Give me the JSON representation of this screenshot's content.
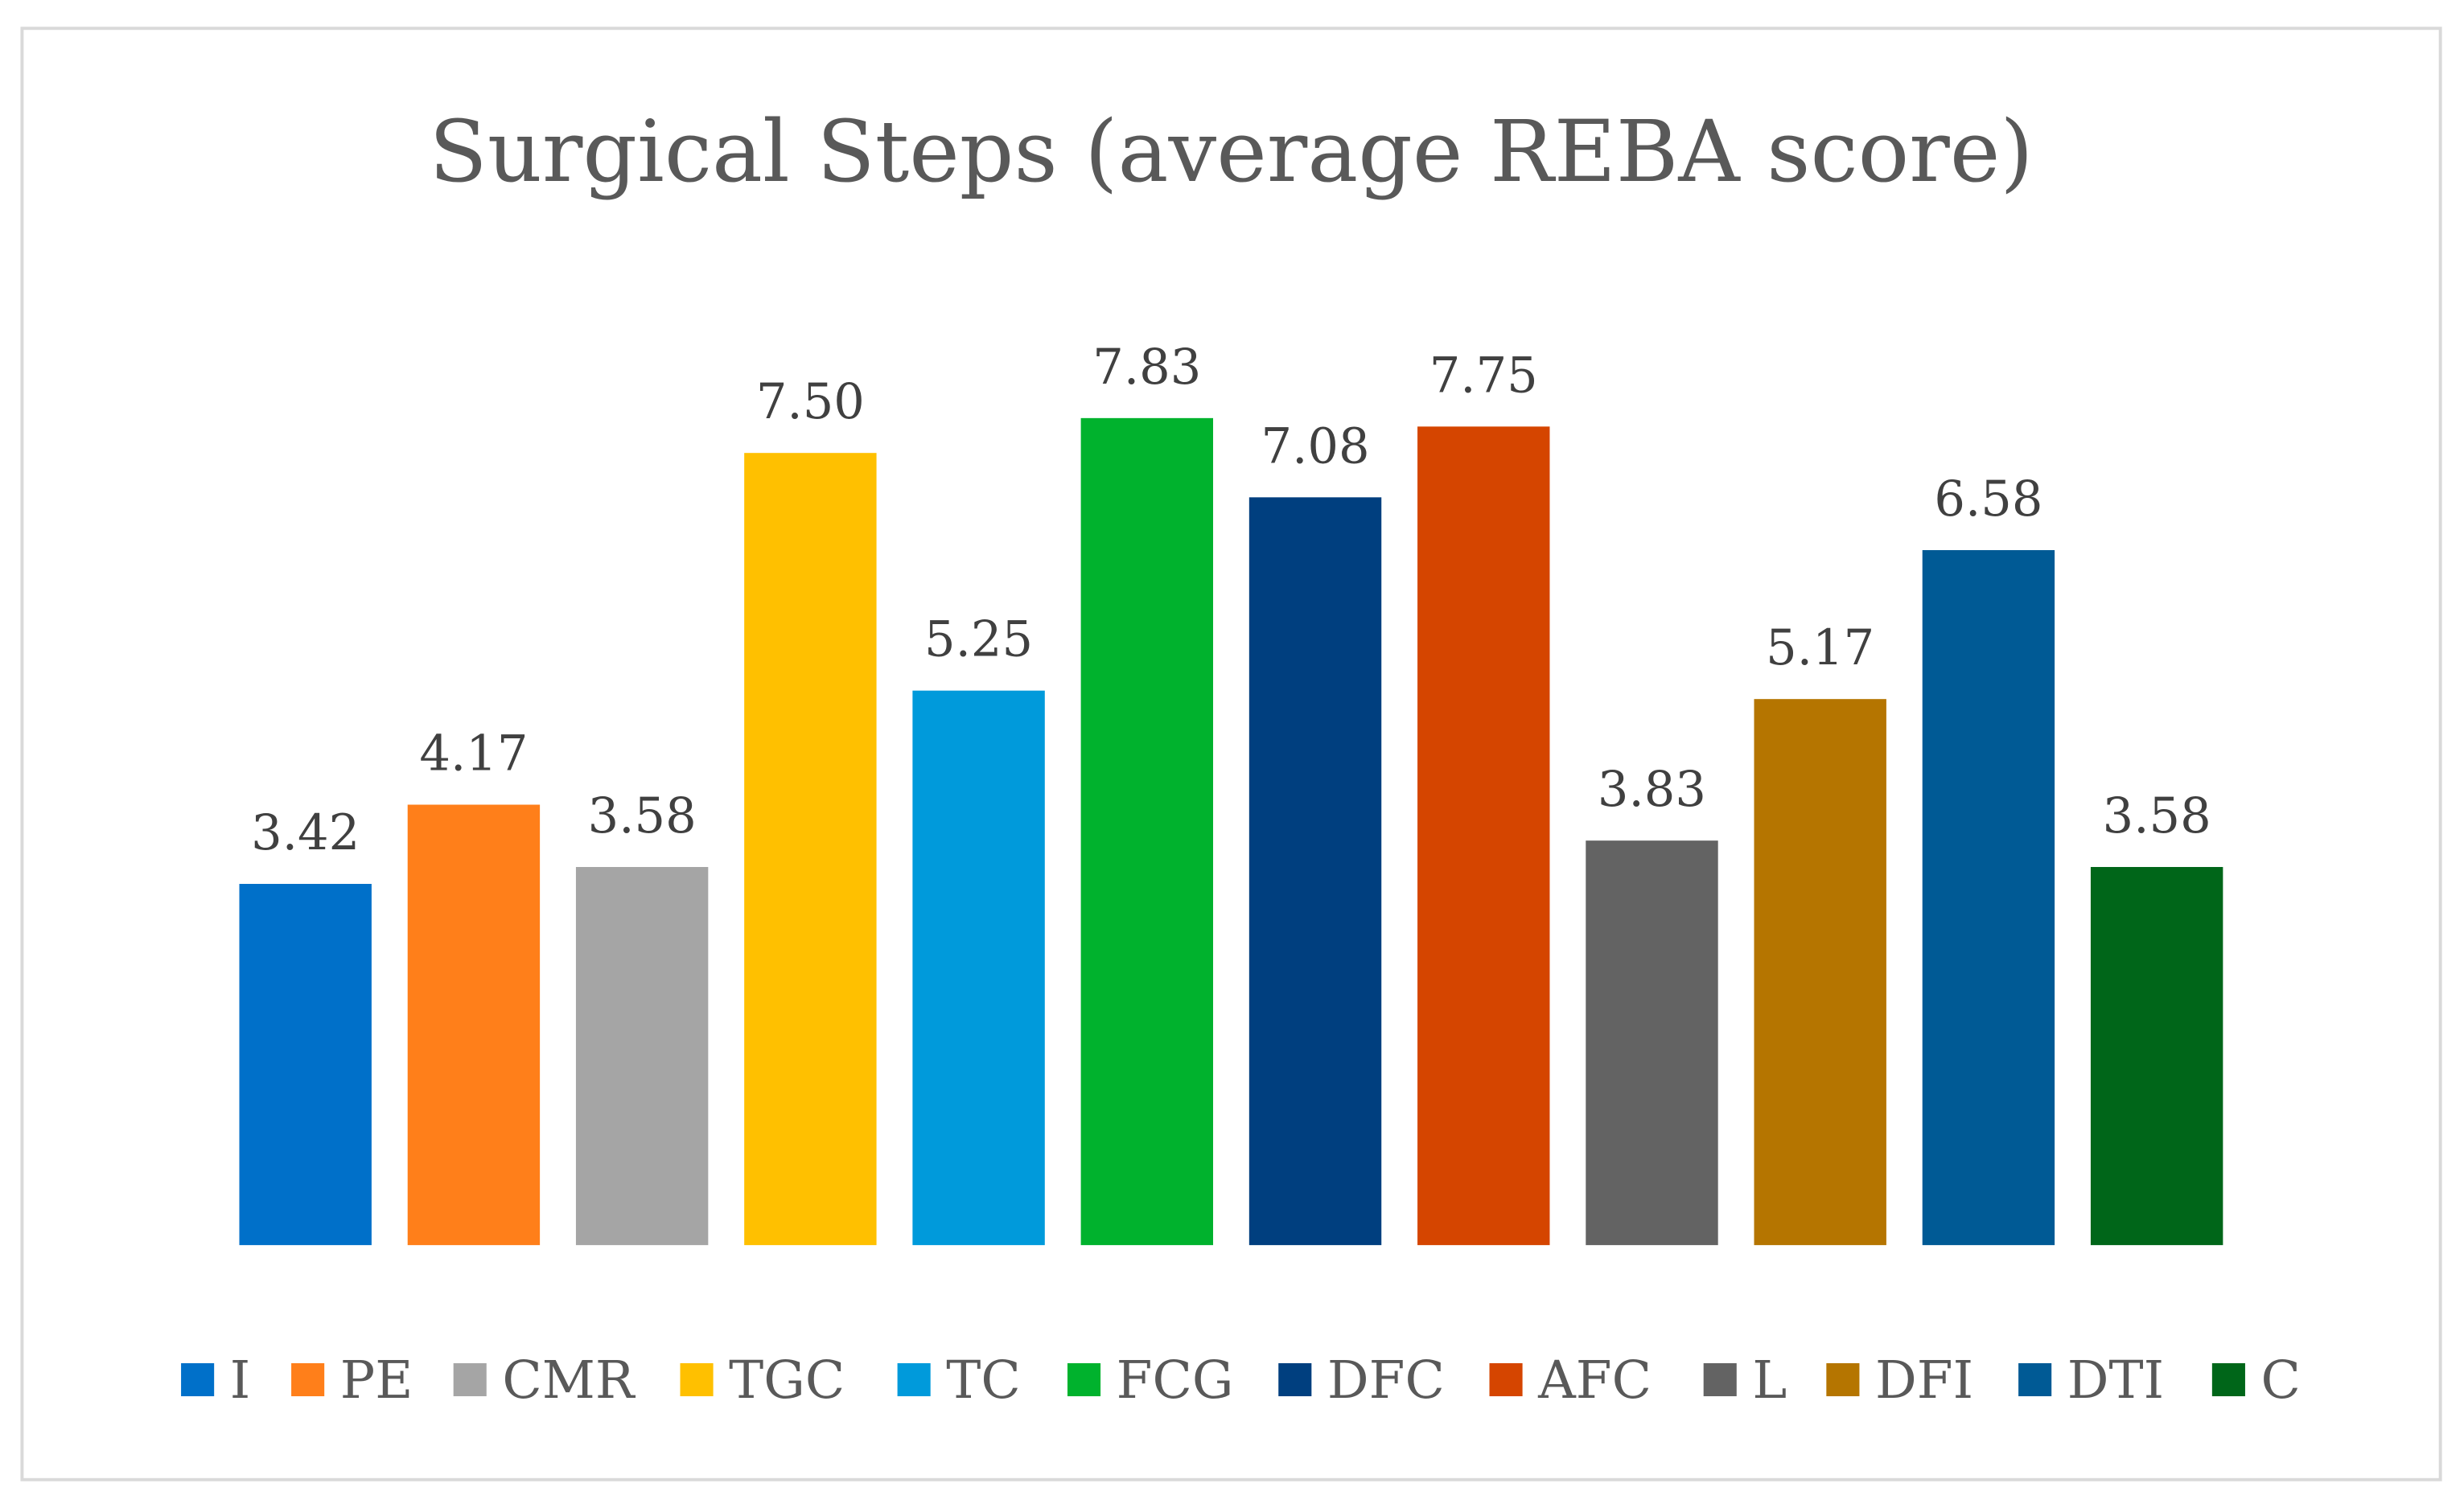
{
  "chart_data": {
    "type": "bar",
    "title": "Surgical Steps (average REBA score)",
    "xlabel": "",
    "ylabel": "",
    "ylim": [
      0,
      8.5
    ],
    "grid": false,
    "legend_position": "bottom",
    "categories": [
      "I",
      "PE",
      "CMR",
      "TGC",
      "TC",
      "FCG",
      "DFC",
      "AFC",
      "L",
      "DFI",
      "DTI",
      "C"
    ],
    "values": [
      3.42,
      4.17,
      3.58,
      7.5,
      5.25,
      7.83,
      7.08,
      7.75,
      3.83,
      5.17,
      6.58,
      3.58
    ],
    "value_labels": [
      "3.42",
      "4.17",
      "3.58",
      "7.50",
      "5.25",
      "7.83",
      "7.08",
      "7.75",
      "3.83",
      "5.17",
      "6.58",
      "3.58"
    ],
    "colors": [
      "#0070C9",
      "#FF7F1A",
      "#A5A5A5",
      "#FFC000",
      "#009ADB",
      "#00B22D",
      "#003F7F",
      "#D54500",
      "#636363",
      "#B57500",
      "#005A95",
      "#006619"
    ]
  }
}
